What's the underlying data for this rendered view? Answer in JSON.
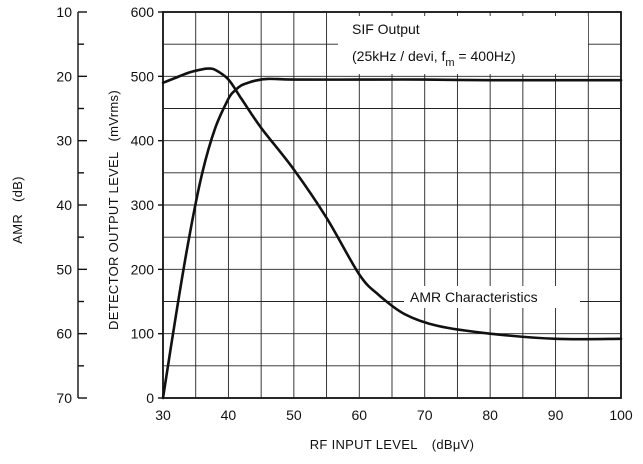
{
  "chart_data": {
    "type": "line",
    "title": "",
    "xlabel": "RF INPUT LEVEL",
    "xlabel_unit": "(dBμV)",
    "xlim": [
      30,
      100
    ],
    "xticks": [
      "30",
      "40",
      "50",
      "60",
      "70",
      "80",
      "90",
      "100"
    ],
    "ylabel": "DETECTOR OUTPUT LEVEL",
    "ylabel_unit": "(mVrms)",
    "ylim": [
      0,
      600
    ],
    "yticks": [
      "0",
      "100",
      "200",
      "300",
      "400",
      "500",
      "600"
    ],
    "y2label": "AMR",
    "y2label_unit": "(dB)",
    "y2lim": [
      10,
      70
    ],
    "y2_inverted": true,
    "y2ticks": [
      "10",
      "20",
      "30",
      "40",
      "50",
      "60",
      "70"
    ],
    "grid": true,
    "annotations": {
      "sif_line1": "SIF Output",
      "sif_line2": "(25kHz / devi, f",
      "sif_sub": "m",
      "sif_line2_end": " = 400Hz)",
      "amr": "AMR Characteristics"
    },
    "series": [
      {
        "name": "SIF Output",
        "axis": "left",
        "x": [
          30,
          32,
          34,
          36,
          38,
          40,
          41,
          42,
          43,
          44,
          46,
          50,
          60,
          70,
          80,
          90,
          100
        ],
        "y": [
          0,
          130,
          250,
          350,
          420,
          465,
          478,
          486,
          490,
          493,
          496,
          495,
          495,
          495,
          494,
          494,
          494
        ]
      },
      {
        "name": "AMR Characteristics",
        "axis": "right",
        "x": [
          30,
          32,
          34,
          36,
          37,
          38,
          40,
          42,
          45,
          50,
          55,
          60,
          63,
          67,
          72,
          80,
          90,
          100
        ],
        "y": [
          21.0,
          20.2,
          19.4,
          18.9,
          18.8,
          19.0,
          20.5,
          23.5,
          28.0,
          34.5,
          42.0,
          50.8,
          54.0,
          57.0,
          58.8,
          60.0,
          60.8,
          60.8
        ]
      }
    ]
  }
}
